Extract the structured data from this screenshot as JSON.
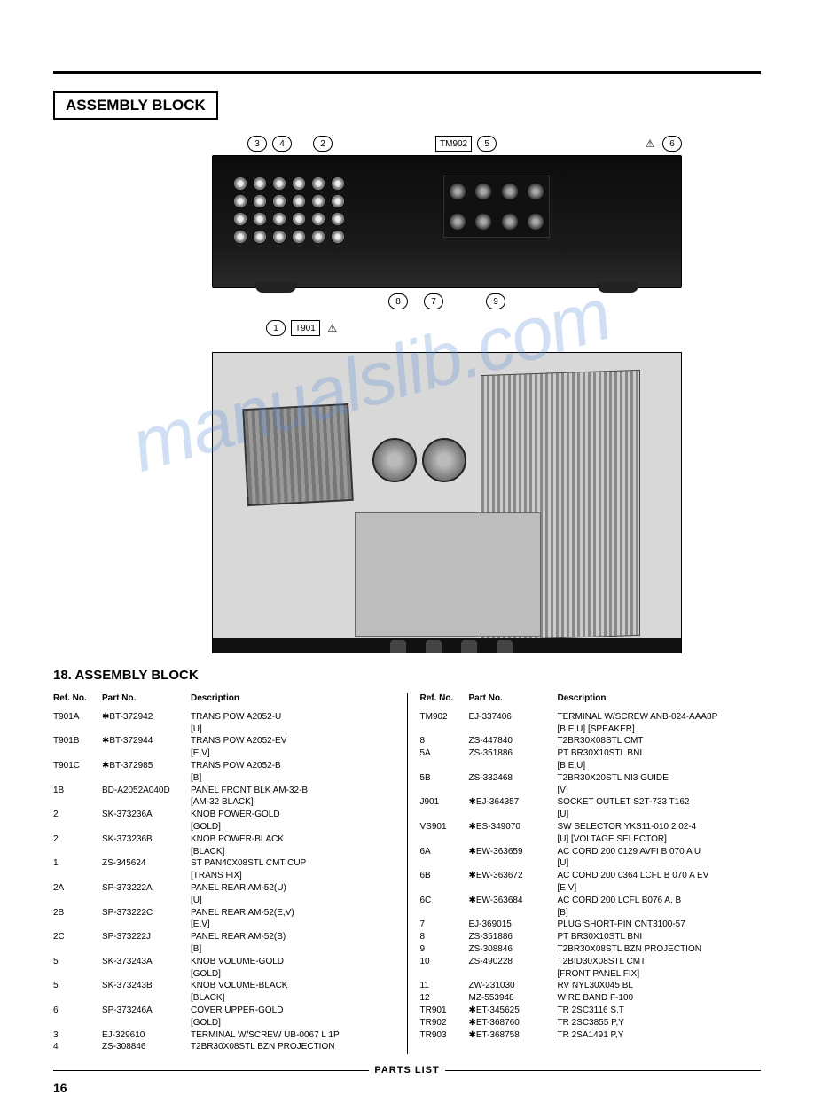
{
  "title_box": "ASSEMBLY BLOCK",
  "section_heading": "18. ASSEMBLY BLOCK",
  "watermark": "manualslib.com",
  "footer_label": "PARTS LIST",
  "page_number": "16",
  "callouts": {
    "top": [
      "3",
      "4",
      "2",
      "TM902",
      "5",
      "6"
    ],
    "warn": "⚠",
    "bottom1": [
      "8",
      "7",
      "9"
    ],
    "mid": [
      "1",
      "T901"
    ]
  },
  "headers": {
    "ref": "Ref. No.",
    "part": "Part No.",
    "desc": "Description"
  },
  "left_rows": [
    {
      "ref": "T901A",
      "part": "✱BT-372942",
      "desc": "TRANS POW A2052-U",
      "sub": "[U]"
    },
    {
      "ref": "T901B",
      "part": "✱BT-372944",
      "desc": "TRANS POW A2052-EV",
      "sub": "[E,V]"
    },
    {
      "ref": "T901C",
      "part": "✱BT-372985",
      "desc": "TRANS POW A2052-B",
      "sub": "[B]"
    },
    {
      "ref": "1B",
      "part": "BD-A2052A040D",
      "desc": "PANEL FRONT BLK AM-32-B",
      "sub": "[AM-32 BLACK]"
    },
    {
      "ref": "2",
      "part": "SK-373236A",
      "desc": "KNOB POWER-GOLD",
      "sub": "[GOLD]"
    },
    {
      "ref": "2",
      "part": "SK-373236B",
      "desc": "KNOB POWER-BLACK",
      "sub": "[BLACK]"
    },
    {
      "ref": "1",
      "part": "ZS-345624",
      "desc": "ST PAN40X08STL CMT CUP",
      "sub": "[TRANS FIX]"
    },
    {
      "ref": "2A",
      "part": "SP-373222A",
      "desc": "PANEL REAR AM-52(U)",
      "sub": "[U]"
    },
    {
      "ref": "2B",
      "part": "SP-373222C",
      "desc": "PANEL REAR AM-52(E,V)",
      "sub": "[E,V]"
    },
    {
      "ref": "2C",
      "part": "SP-373222J",
      "desc": "PANEL REAR AM-52(B)",
      "sub": "[B]"
    },
    {
      "ref": "5",
      "part": "SK-373243A",
      "desc": "KNOB VOLUME-GOLD",
      "sub": "[GOLD]"
    },
    {
      "ref": "5",
      "part": "SK-373243B",
      "desc": "KNOB VOLUME-BLACK",
      "sub": "[BLACK]"
    },
    {
      "ref": "6",
      "part": "SP-373246A",
      "desc": "COVER UPPER-GOLD",
      "sub": "[GOLD]"
    },
    {
      "ref": "3",
      "part": "EJ-329610",
      "desc": "TERMINAL W/SCREW UB-0067 L 1P"
    },
    {
      "ref": "4",
      "part": "ZS-308846",
      "desc": "T2BR30X08STL BZN PROJECTION"
    }
  ],
  "right_rows": [
    {
      "ref": "TM902",
      "part": "EJ-337406",
      "desc": "TERMINAL W/SCREW ANB-024-AAA8P",
      "sub": "[B,E,U] [SPEAKER]"
    },
    {
      "ref": "8",
      "part": "ZS-447840",
      "desc": "T2BR30X08STL CMT"
    },
    {
      "ref": "5A",
      "part": "ZS-351886",
      "desc": "PT BR30X10STL BNI",
      "sub": "[B,E,U]"
    },
    {
      "ref": "5B",
      "part": "ZS-332468",
      "desc": "T2BR30X20STL NI3 GUIDE",
      "sub": "[V]"
    },
    {
      "ref": "J901",
      "part": "✱EJ-364357",
      "desc": "SOCKET OUTLET S2T-733 T162",
      "sub": "[U]"
    },
    {
      "ref": "VS901",
      "part": "✱ES-349070",
      "desc": "SW SELECTOR YKS11-010 2 02-4",
      "sub": "[U] [VOLTAGE SELECTOR]"
    },
    {
      "ref": "6A",
      "part": "✱EW-363659",
      "desc": "AC CORD 200 0129 AVFI B 070 A U",
      "sub": "[U]"
    },
    {
      "ref": "6B",
      "part": "✱EW-363672",
      "desc": "AC CORD 200 0364 LCFL B 070 A EV",
      "sub": "[E,V]"
    },
    {
      "ref": "6C",
      "part": "✱EW-363684",
      "desc": "AC CORD 200 LCFL B076 A, B",
      "sub": "[B]"
    },
    {
      "ref": "7",
      "part": "EJ-369015",
      "desc": "PLUG SHORT-PIN CNT3100-57"
    },
    {
      "ref": "8",
      "part": "ZS-351886",
      "desc": "PT BR30X10STL BNI"
    },
    {
      "ref": "9",
      "part": "ZS-308846",
      "desc": "T2BR30X08STL BZN PROJECTION"
    },
    {
      "ref": "10",
      "part": "ZS-490228",
      "desc": "T2BID30X08STL CMT",
      "sub": "[FRONT PANEL FIX]"
    },
    {
      "ref": "11",
      "part": "ZW-231030",
      "desc": "RV NYL30X045 BL"
    },
    {
      "ref": "12",
      "part": "MZ-553948",
      "desc": "WIRE BAND F-100"
    },
    {
      "ref": "TR901",
      "part": "✱ET-345625",
      "desc": "TR 2SC3116 S,T"
    },
    {
      "ref": "TR902",
      "part": "✱ET-368760",
      "desc": "TR 2SC3855 P,Y"
    },
    {
      "ref": "TR903",
      "part": "✱ET-368758",
      "desc": "TR 2SA1491 P,Y"
    }
  ]
}
